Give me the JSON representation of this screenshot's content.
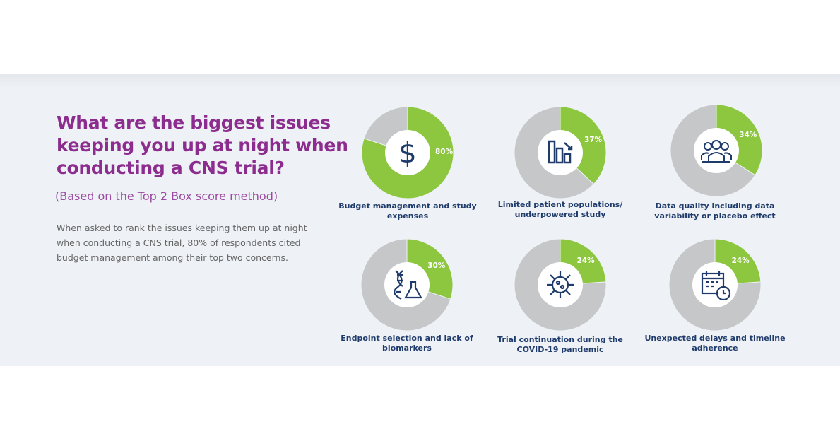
{
  "header": {
    "title": "What are the biggest issues keeping you up at night when conducting a CNS trial?",
    "subtitle": "(Based on the Top 2 Box score method)",
    "body": "When asked to rank the issues keeping them up at night when conducting a CNS trial, 80% of respondents cited budget management among their top two concerns."
  },
  "colors": {
    "accent": "#8dc63f",
    "remainder": "#c6c7c8",
    "title": "#8b2c8e",
    "label": "#1f3b6b"
  },
  "chart_data": [
    {
      "type": "pie",
      "variant": "donut",
      "label": "Budget management and study expenses",
      "value": 80,
      "value_label": "80%",
      "values": [
        80,
        20
      ],
      "icon": "dollar-icon"
    },
    {
      "type": "pie",
      "variant": "donut",
      "label": "Limited patient populations/ underpowered study",
      "value": 37,
      "value_label": "37%",
      "values": [
        37,
        63
      ],
      "icon": "declining-bar-chart-icon"
    },
    {
      "type": "pie",
      "variant": "donut",
      "label": "Data quality including data variability or placebo effect",
      "value": 34,
      "value_label": "34%",
      "values": [
        34,
        66
      ],
      "icon": "people-group-icon"
    },
    {
      "type": "pie",
      "variant": "donut",
      "label": "Endpoint selection and lack of biomarkers",
      "value": 30,
      "value_label": "30%",
      "values": [
        30,
        70
      ],
      "icon": "dna-flask-icon"
    },
    {
      "type": "pie",
      "variant": "donut",
      "label": "Trial continuation during the COVID-19 pandemic",
      "value": 24,
      "value_label": "24%",
      "values": [
        24,
        76
      ],
      "icon": "virus-icon"
    },
    {
      "type": "pie",
      "variant": "donut",
      "label": "Unexpected delays and timeline adherence",
      "value": 24,
      "value_label": "24%",
      "values": [
        24,
        76
      ],
      "icon": "calendar-clock-icon"
    }
  ]
}
